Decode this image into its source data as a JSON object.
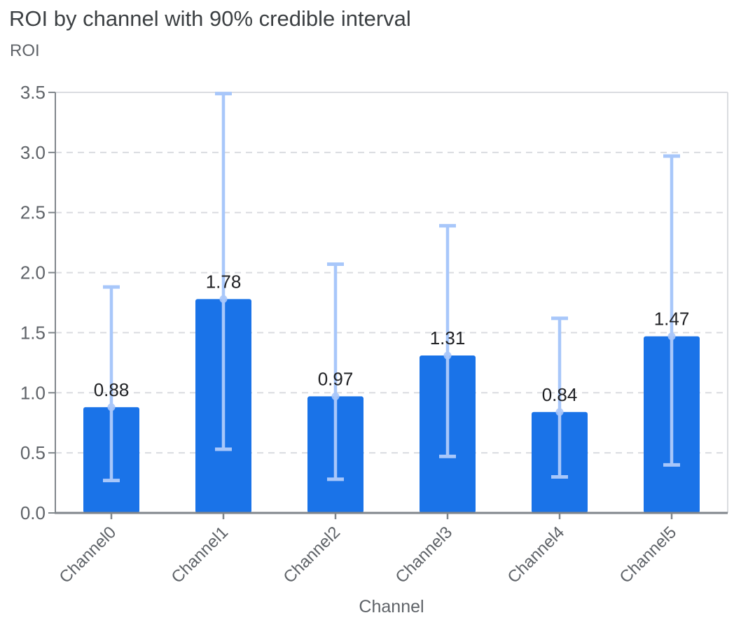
{
  "chart_data": {
    "type": "bar",
    "title": "ROI by channel with 90% credible interval",
    "xlabel": "Channel",
    "ylabel": "ROI",
    "categories": [
      "Channel0",
      "Channel1",
      "Channel2",
      "Channel3",
      "Channel4",
      "Channel5"
    ],
    "values": [
      0.88,
      1.78,
      0.97,
      1.31,
      0.84,
      1.47
    ],
    "value_labels": [
      "0.88",
      "1.78",
      "0.97",
      "1.31",
      "0.84",
      "1.47"
    ],
    "error_bars": {
      "kind": "90% credible interval",
      "lower": [
        0.27,
        0.53,
        0.28,
        0.47,
        0.3,
        0.4
      ],
      "upper": [
        1.88,
        3.49,
        2.07,
        2.39,
        1.62,
        2.97
      ]
    },
    "y_ticks": [
      "0.0",
      "0.5",
      "1.0",
      "1.5",
      "2.0",
      "2.5",
      "3.0",
      "3.5"
    ],
    "ylim": [
      0,
      3.5
    ],
    "grid": "horizontal-dashed",
    "legend": "none",
    "colors": {
      "bar": "#1a73e8",
      "error_bar": "#a8c7fa",
      "title_text": "#3c4043",
      "axis_text": "#5f6368",
      "value_label_text": "#202124",
      "gridline": "#dadce0",
      "plot_border": "#dadce0",
      "axis_line": "#80868b"
    }
  }
}
